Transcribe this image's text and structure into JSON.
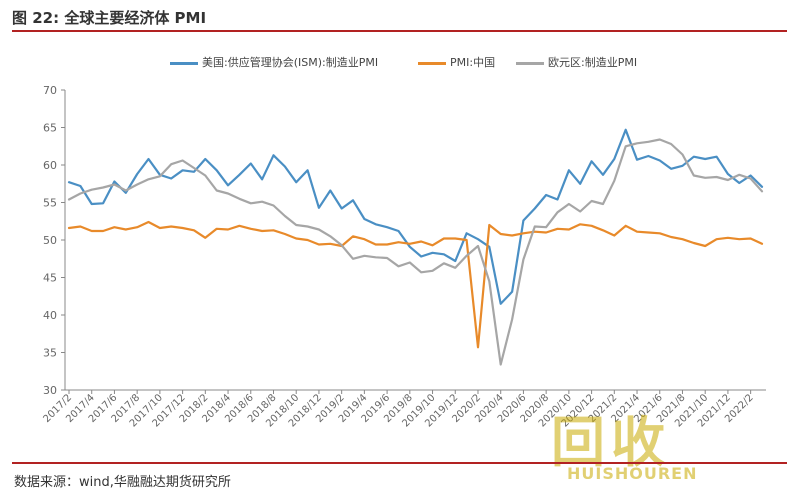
{
  "header": {
    "title": "图 22: 全球主要经济体 PMI"
  },
  "footer": {
    "source": "数据来源：wind,华融融达期货研究所"
  },
  "watermark": {
    "main": "回收",
    "sub": "HUISHOUREN"
  },
  "colors": {
    "ism": "#4a8fc4",
    "china": "#e88a2a",
    "euro": "#a6a6a6",
    "rule": "#b22222",
    "axis": "#888888"
  },
  "chart_data": {
    "type": "line",
    "title": "全球主要经济体 PMI",
    "ylim": [
      30,
      70
    ],
    "yticks": [
      30,
      35,
      40,
      45,
      50,
      55,
      60,
      65,
      70
    ],
    "grid": false,
    "legend_position": "top",
    "x_tick_labels": [
      "2017/2",
      "2017/4",
      "2017/6",
      "2017/8",
      "2017/10",
      "2017/12",
      "2018/2",
      "2018/4",
      "2018/6",
      "2018/8",
      "2018/10",
      "2018/12",
      "2019/2",
      "2019/4",
      "2019/6",
      "2019/8",
      "2019/10",
      "2019/12",
      "2020/2",
      "2020/4",
      "2020/6",
      "2020/8",
      "2020/10",
      "2020/12",
      "2021/2",
      "2021/4",
      "2021/6",
      "2021/8",
      "2021/10",
      "2021/12",
      "2022/2"
    ],
    "x": [
      "2017/2",
      "2017/3",
      "2017/4",
      "2017/5",
      "2017/6",
      "2017/7",
      "2017/8",
      "2017/9",
      "2017/10",
      "2017/11",
      "2017/12",
      "2018/1",
      "2018/2",
      "2018/3",
      "2018/4",
      "2018/5",
      "2018/6",
      "2018/7",
      "2018/8",
      "2018/9",
      "2018/10",
      "2018/11",
      "2018/12",
      "2019/1",
      "2019/2",
      "2019/3",
      "2019/4",
      "2019/5",
      "2019/6",
      "2019/7",
      "2019/8",
      "2019/9",
      "2019/10",
      "2019/11",
      "2019/12",
      "2020/1",
      "2020/2",
      "2020/3",
      "2020/4",
      "2020/5",
      "2020/6",
      "2020/7",
      "2020/8",
      "2020/9",
      "2020/10",
      "2020/11",
      "2020/12",
      "2021/1",
      "2021/2",
      "2021/3",
      "2021/4",
      "2021/5",
      "2021/6",
      "2021/7",
      "2021/8",
      "2021/9",
      "2021/10",
      "2021/11",
      "2021/12",
      "2022/1",
      "2022/2",
      "2022/3"
    ],
    "series": [
      {
        "name": "美国:供应管理协会(ISM):制造业PMI",
        "color": "#4a8fc4",
        "values": [
          57.7,
          57.2,
          54.8,
          54.9,
          57.8,
          56.3,
          58.8,
          60.8,
          58.7,
          58.2,
          59.3,
          59.1,
          60.8,
          59.3,
          57.3,
          58.7,
          60.2,
          58.1,
          61.3,
          59.8,
          57.7,
          59.3,
          54.3,
          56.6,
          54.2,
          55.3,
          52.8,
          52.1,
          51.7,
          51.2,
          49.1,
          47.8,
          48.3,
          48.1,
          47.2,
          50.9,
          50.1,
          49.1,
          41.5,
          43.1,
          52.6,
          54.2,
          56.0,
          55.4,
          59.3,
          57.5,
          60.5,
          58.7,
          60.8,
          64.7,
          60.7,
          61.2,
          60.6,
          59.5,
          59.9,
          61.1,
          60.8,
          61.1,
          58.8,
          57.6,
          58.6,
          57.1
        ]
      },
      {
        "name": "PMI:中国",
        "color": "#e88a2a",
        "values": [
          51.6,
          51.8,
          51.2,
          51.2,
          51.7,
          51.4,
          51.7,
          52.4,
          51.6,
          51.8,
          51.6,
          51.3,
          50.3,
          51.5,
          51.4,
          51.9,
          51.5,
          51.2,
          51.3,
          50.8,
          50.2,
          50.0,
          49.4,
          49.5,
          49.2,
          50.5,
          50.1,
          49.4,
          49.4,
          49.7,
          49.5,
          49.8,
          49.3,
          50.2,
          50.2,
          50.0,
          35.7,
          52.0,
          50.8,
          50.6,
          50.9,
          51.1,
          51.0,
          51.5,
          51.4,
          52.1,
          51.9,
          51.3,
          50.6,
          51.9,
          51.1,
          51.0,
          50.9,
          50.4,
          50.1,
          49.6,
          49.2,
          50.1,
          50.3,
          50.1,
          50.2,
          49.5
        ]
      },
      {
        "name": "欧元区:制造业PMI",
        "color": "#a6a6a6",
        "values": [
          55.4,
          56.2,
          56.7,
          57.0,
          57.4,
          56.6,
          57.4,
          58.1,
          58.5,
          60.1,
          60.6,
          59.6,
          58.6,
          56.6,
          56.2,
          55.5,
          54.9,
          55.1,
          54.6,
          53.2,
          52.0,
          51.8,
          51.4,
          50.5,
          49.3,
          47.5,
          47.9,
          47.7,
          47.6,
          46.5,
          47.0,
          45.7,
          45.9,
          46.9,
          46.3,
          47.9,
          49.2,
          44.5,
          33.4,
          39.4,
          47.4,
          51.8,
          51.7,
          53.7,
          54.8,
          53.8,
          55.2,
          54.8,
          57.9,
          62.5,
          62.9,
          63.1,
          63.4,
          62.8,
          61.4,
          58.6,
          58.3,
          58.4,
          58.0,
          58.7,
          58.2,
          56.5
        ]
      }
    ]
  }
}
